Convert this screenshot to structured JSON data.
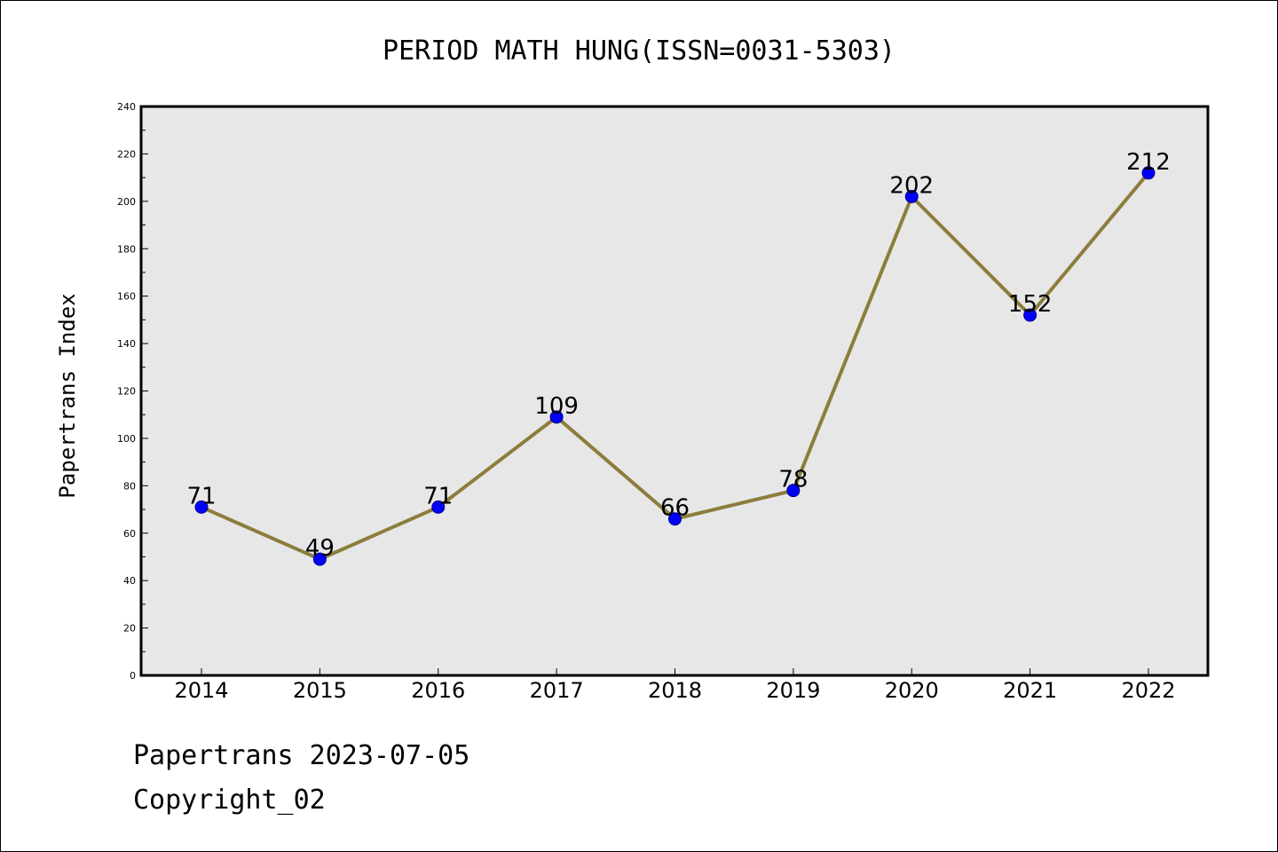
{
  "chart_data": {
    "type": "line",
    "title": "PERIOD MATH HUNG(ISSN=0031-5303)",
    "xlabel": "",
    "ylabel": "Papertrans Index",
    "categories": [
      "2014",
      "2015",
      "2016",
      "2017",
      "2018",
      "2019",
      "2020",
      "2021",
      "2022"
    ],
    "series": [
      {
        "values": [
          71,
          49,
          71,
          109,
          66,
          78,
          202,
          152,
          212
        ]
      }
    ],
    "ylim": [
      0,
      240
    ],
    "yticks": [
      0,
      20,
      40,
      60,
      80,
      100,
      120,
      140,
      160,
      180,
      200,
      220,
      240
    ],
    "grid": false,
    "legend": "none",
    "data_labels": true,
    "colors": {
      "line": "#8c7d3c",
      "marker_fill": "#0000ff",
      "marker_edge": "#000080",
      "plot_background": "#e7e7e7"
    }
  },
  "footer": {
    "line1": "Papertrans 2023-07-05",
    "line2": "Copyright_02"
  }
}
